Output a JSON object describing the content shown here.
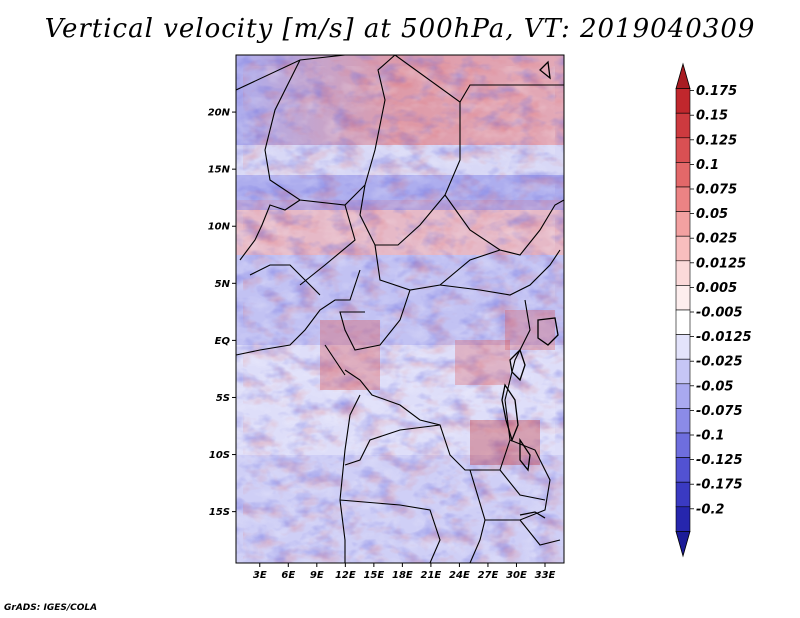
{
  "title": "Vertical velocity [m/s] at 500hPa, VT: 2019040309",
  "footer": "GrADS: IGES/COLA",
  "map": {
    "lat_ticks": [
      {
        "value": 20,
        "label": "20N"
      },
      {
        "value": 15,
        "label": "15N"
      },
      {
        "value": 10,
        "label": "10N"
      },
      {
        "value": 5,
        "label": "5N"
      },
      {
        "value": 0,
        "label": "EQ"
      },
      {
        "value": -5,
        "label": "5S"
      },
      {
        "value": -10,
        "label": "10S"
      },
      {
        "value": -15,
        "label": "15S"
      }
    ],
    "lon_ticks": [
      {
        "value": 3,
        "label": "3E"
      },
      {
        "value": 6,
        "label": "6E"
      },
      {
        "value": 9,
        "label": "9E"
      },
      {
        "value": 12,
        "label": "12E"
      },
      {
        "value": 15,
        "label": "15E"
      },
      {
        "value": 18,
        "label": "18E"
      },
      {
        "value": 21,
        "label": "21E"
      },
      {
        "value": 24,
        "label": "24E"
      },
      {
        "value": 27,
        "label": "27E"
      },
      {
        "value": 30,
        "label": "30E"
      },
      {
        "value": 33,
        "label": "33E"
      }
    ],
    "lon_range": [
      0.5,
      35
    ],
    "lat_range": [
      -19.5,
      25
    ]
  },
  "colorbar": {
    "levels": [
      {
        "label": "0.175",
        "color": "#c0272d"
      },
      {
        "label": "0.15",
        "color": "#cd3a3f"
      },
      {
        "label": "0.125",
        "color": "#d95053"
      },
      {
        "label": "0.1",
        "color": "#e36869"
      },
      {
        "label": "0.075",
        "color": "#ec8384"
      },
      {
        "label": "0.05",
        "color": "#f3a1a1"
      },
      {
        "label": "0.025",
        "color": "#f8bebe"
      },
      {
        "label": "0.0125",
        "color": "#fbd9d9"
      },
      {
        "label": "0.005",
        "color": "#fdeeee"
      },
      {
        "label": "-0.005",
        "color": "#ffffff"
      },
      {
        "label": "-0.0125",
        "color": "#e3e3fb"
      },
      {
        "label": "-0.025",
        "color": "#c6c6f6"
      },
      {
        "label": "-0.05",
        "color": "#a9a9f0"
      },
      {
        "label": "-0.075",
        "color": "#8b8be8"
      },
      {
        "label": "-0.1",
        "color": "#6e6ede"
      },
      {
        "label": "-0.125",
        "color": "#5252d2"
      },
      {
        "label": "-0.175",
        "color": "#3a3ac2"
      },
      {
        "label": "-0.2",
        "color": "#2626ad"
      }
    ],
    "top_color": "#a81c22",
    "bottom_color": "#1c1c98"
  }
}
